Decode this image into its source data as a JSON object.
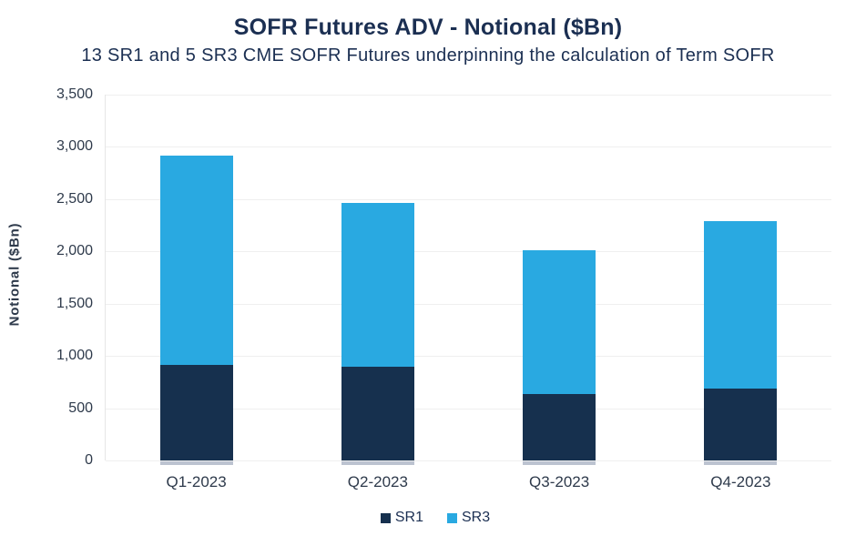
{
  "chart_data": {
    "type": "bar",
    "stacked": true,
    "title": "SOFR Futures ADV - Notional ($Bn)",
    "subtitle": "13 SR1 and 5 SR3 CME SOFR Futures underpinning the calculation of Term SOFR",
    "ylabel": "Notional ($Bn)",
    "xlabel": "",
    "categories": [
      "Q1-2023",
      "Q2-2023",
      "Q3-2023",
      "Q4-2023"
    ],
    "series": [
      {
        "name": "SR1",
        "color": "#16304E",
        "values": [
          910,
          900,
          640,
          690
        ]
      },
      {
        "name": "SR3",
        "color": "#29A9E1",
        "values": [
          2010,
          1560,
          1370,
          1600
        ]
      }
    ],
    "totals": [
      2920,
      2460,
      2010,
      2290
    ],
    "ylim": [
      0,
      3500
    ],
    "yticks": [
      0,
      500,
      1000,
      1500,
      2000,
      2500,
      3000,
      3500
    ],
    "ytick_labels": [
      "0",
      "500",
      "1,000",
      "1,500",
      "2,000",
      "2,500",
      "3,000",
      "3,500"
    ],
    "grid": "horizontal",
    "legend_position": "bottom",
    "colors": {
      "title_text": "#1B2F52",
      "axis_text": "#2E3A4B",
      "gridline": "#EFEFEF",
      "axis_line": "#E6E6E6",
      "bar_base_shadow": "#BCC3D0",
      "background": "#FFFFFF"
    }
  }
}
